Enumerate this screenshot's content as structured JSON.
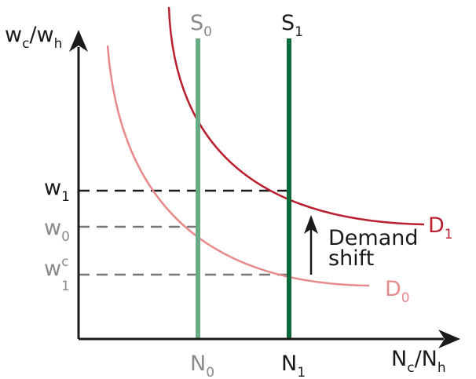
{
  "axes": {
    "y_label": {
      "main": "w",
      "sub1": "c",
      "slash": "/w",
      "sub2": "h"
    },
    "x_label": {
      "main": "N",
      "sub1": "c",
      "slash": "/N",
      "sub2": "h"
    }
  },
  "supply": [
    {
      "main": "S",
      "sub": "0",
      "color": "#6aaa84"
    },
    {
      "main": "S",
      "sub": "1",
      "color": "#0b6a3a"
    }
  ],
  "demand": [
    {
      "main": "D",
      "sub": "0",
      "color": "#e68a8c"
    },
    {
      "main": "D",
      "sub": "1",
      "color": "#b8202f"
    }
  ],
  "wages": {
    "w1": {
      "main": "w",
      "sub": "1"
    },
    "w0": {
      "main": "w",
      "sub": "0"
    },
    "w1c": {
      "main": "w",
      "sup": "c",
      "sub": "1"
    }
  },
  "quantities": {
    "n0": {
      "main": "N",
      "sub": "0"
    },
    "n1": {
      "main": "N",
      "sub": "1"
    }
  },
  "annotation": {
    "line1": "Demand",
    "line2": "shift"
  },
  "colors": {
    "axis": "#1a1a1a",
    "dashed_black": "#1a1a1a",
    "dashed_gray": "#777777",
    "gray_text": "#8a8a8a"
  }
}
